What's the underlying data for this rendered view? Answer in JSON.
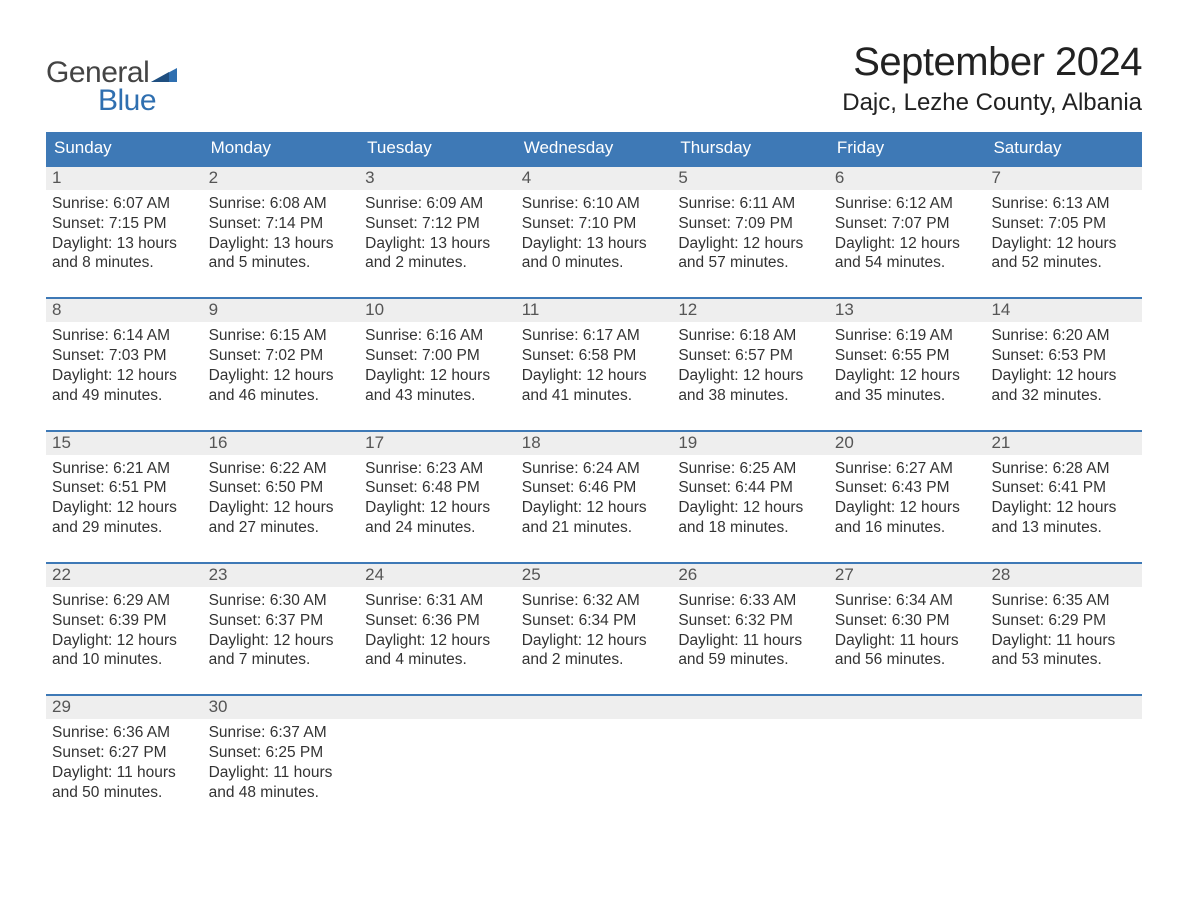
{
  "colors": {
    "header_bg": "#3e79b6",
    "header_text": "#ffffff",
    "daynum_bg": "#eeeeee",
    "daynum_text": "#555555",
    "body_text": "#333333",
    "week_border": "#3e79b6",
    "page_bg": "#ffffff",
    "logo_gray": "#444444",
    "logo_blue": "#2f6fb0"
  },
  "logo": {
    "line1": "General",
    "line2": "Blue"
  },
  "title": {
    "month": "September 2024",
    "location": "Dajc, Lezhe County, Albania"
  },
  "weekdays": [
    "Sunday",
    "Monday",
    "Tuesday",
    "Wednesday",
    "Thursday",
    "Friday",
    "Saturday"
  ],
  "layout": {
    "num_weeks": 5,
    "cols": 7
  },
  "fonts": {
    "month_title_pt": 40,
    "location_pt": 24,
    "weekday_pt": 17,
    "daynum_pt": 17,
    "body_pt": 15.5
  },
  "weeks": [
    [
      {
        "n": "1",
        "sunrise": "Sunrise: 6:07 AM",
        "sunset": "Sunset: 7:15 PM",
        "daylight": "Daylight: 13 hours and 8 minutes."
      },
      {
        "n": "2",
        "sunrise": "Sunrise: 6:08 AM",
        "sunset": "Sunset: 7:14 PM",
        "daylight": "Daylight: 13 hours and 5 minutes."
      },
      {
        "n": "3",
        "sunrise": "Sunrise: 6:09 AM",
        "sunset": "Sunset: 7:12 PM",
        "daylight": "Daylight: 13 hours and 2 minutes."
      },
      {
        "n": "4",
        "sunrise": "Sunrise: 6:10 AM",
        "sunset": "Sunset: 7:10 PM",
        "daylight": "Daylight: 13 hours and 0 minutes."
      },
      {
        "n": "5",
        "sunrise": "Sunrise: 6:11 AM",
        "sunset": "Sunset: 7:09 PM",
        "daylight": "Daylight: 12 hours and 57 minutes."
      },
      {
        "n": "6",
        "sunrise": "Sunrise: 6:12 AM",
        "sunset": "Sunset: 7:07 PM",
        "daylight": "Daylight: 12 hours and 54 minutes."
      },
      {
        "n": "7",
        "sunrise": "Sunrise: 6:13 AM",
        "sunset": "Sunset: 7:05 PM",
        "daylight": "Daylight: 12 hours and 52 minutes."
      }
    ],
    [
      {
        "n": "8",
        "sunrise": "Sunrise: 6:14 AM",
        "sunset": "Sunset: 7:03 PM",
        "daylight": "Daylight: 12 hours and 49 minutes."
      },
      {
        "n": "9",
        "sunrise": "Sunrise: 6:15 AM",
        "sunset": "Sunset: 7:02 PM",
        "daylight": "Daylight: 12 hours and 46 minutes."
      },
      {
        "n": "10",
        "sunrise": "Sunrise: 6:16 AM",
        "sunset": "Sunset: 7:00 PM",
        "daylight": "Daylight: 12 hours and 43 minutes."
      },
      {
        "n": "11",
        "sunrise": "Sunrise: 6:17 AM",
        "sunset": "Sunset: 6:58 PM",
        "daylight": "Daylight: 12 hours and 41 minutes."
      },
      {
        "n": "12",
        "sunrise": "Sunrise: 6:18 AM",
        "sunset": "Sunset: 6:57 PM",
        "daylight": "Daylight: 12 hours and 38 minutes."
      },
      {
        "n": "13",
        "sunrise": "Sunrise: 6:19 AM",
        "sunset": "Sunset: 6:55 PM",
        "daylight": "Daylight: 12 hours and 35 minutes."
      },
      {
        "n": "14",
        "sunrise": "Sunrise: 6:20 AM",
        "sunset": "Sunset: 6:53 PM",
        "daylight": "Daylight: 12 hours and 32 minutes."
      }
    ],
    [
      {
        "n": "15",
        "sunrise": "Sunrise: 6:21 AM",
        "sunset": "Sunset: 6:51 PM",
        "daylight": "Daylight: 12 hours and 29 minutes."
      },
      {
        "n": "16",
        "sunrise": "Sunrise: 6:22 AM",
        "sunset": "Sunset: 6:50 PM",
        "daylight": "Daylight: 12 hours and 27 minutes."
      },
      {
        "n": "17",
        "sunrise": "Sunrise: 6:23 AM",
        "sunset": "Sunset: 6:48 PM",
        "daylight": "Daylight: 12 hours and 24 minutes."
      },
      {
        "n": "18",
        "sunrise": "Sunrise: 6:24 AM",
        "sunset": "Sunset: 6:46 PM",
        "daylight": "Daylight: 12 hours and 21 minutes."
      },
      {
        "n": "19",
        "sunrise": "Sunrise: 6:25 AM",
        "sunset": "Sunset: 6:44 PM",
        "daylight": "Daylight: 12 hours and 18 minutes."
      },
      {
        "n": "20",
        "sunrise": "Sunrise: 6:27 AM",
        "sunset": "Sunset: 6:43 PM",
        "daylight": "Daylight: 12 hours and 16 minutes."
      },
      {
        "n": "21",
        "sunrise": "Sunrise: 6:28 AM",
        "sunset": "Sunset: 6:41 PM",
        "daylight": "Daylight: 12 hours and 13 minutes."
      }
    ],
    [
      {
        "n": "22",
        "sunrise": "Sunrise: 6:29 AM",
        "sunset": "Sunset: 6:39 PM",
        "daylight": "Daylight: 12 hours and 10 minutes."
      },
      {
        "n": "23",
        "sunrise": "Sunrise: 6:30 AM",
        "sunset": "Sunset: 6:37 PM",
        "daylight": "Daylight: 12 hours and 7 minutes."
      },
      {
        "n": "24",
        "sunrise": "Sunrise: 6:31 AM",
        "sunset": "Sunset: 6:36 PM",
        "daylight": "Daylight: 12 hours and 4 minutes."
      },
      {
        "n": "25",
        "sunrise": "Sunrise: 6:32 AM",
        "sunset": "Sunset: 6:34 PM",
        "daylight": "Daylight: 12 hours and 2 minutes."
      },
      {
        "n": "26",
        "sunrise": "Sunrise: 6:33 AM",
        "sunset": "Sunset: 6:32 PM",
        "daylight": "Daylight: 11 hours and 59 minutes."
      },
      {
        "n": "27",
        "sunrise": "Sunrise: 6:34 AM",
        "sunset": "Sunset: 6:30 PM",
        "daylight": "Daylight: 11 hours and 56 minutes."
      },
      {
        "n": "28",
        "sunrise": "Sunrise: 6:35 AM",
        "sunset": "Sunset: 6:29 PM",
        "daylight": "Daylight: 11 hours and 53 minutes."
      }
    ],
    [
      {
        "n": "29",
        "sunrise": "Sunrise: 6:36 AM",
        "sunset": "Sunset: 6:27 PM",
        "daylight": "Daylight: 11 hours and 50 minutes."
      },
      {
        "n": "30",
        "sunrise": "Sunrise: 6:37 AM",
        "sunset": "Sunset: 6:25 PM",
        "daylight": "Daylight: 11 hours and 48 minutes."
      },
      null,
      null,
      null,
      null,
      null
    ]
  ]
}
